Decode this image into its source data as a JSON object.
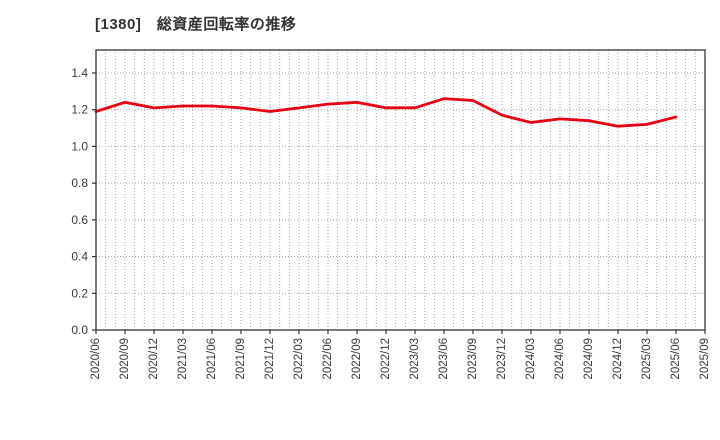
{
  "page": {
    "title": "[1380]　総資産回転率の推移"
  },
  "colors": {
    "line": "#e60012",
    "grid": "#a6a6a6",
    "axis": "#333333",
    "tick_text": "#3c3c3c",
    "background": "#ffffff"
  },
  "chart_data": {
    "type": "line",
    "title": "[1380]　総資産回転率の推移",
    "categories": [
      "2020/06",
      "2020/09",
      "2020/12",
      "2021/03",
      "2021/06",
      "2021/09",
      "2021/12",
      "2022/03",
      "2022/06",
      "2022/09",
      "2022/12",
      "2023/03",
      "2023/06",
      "2023/09",
      "2023/12",
      "2024/03",
      "2024/06",
      "2024/09",
      "2024/12",
      "2025/03",
      "2025/06",
      "2025/09"
    ],
    "values": [
      1.19,
      1.24,
      1.21,
      1.22,
      1.22,
      1.21,
      1.19,
      1.21,
      1.23,
      1.24,
      1.21,
      1.21,
      1.26,
      1.25,
      1.17,
      1.13,
      1.15,
      1.14,
      1.11,
      1.12,
      1.16,
      null
    ],
    "xlabel": "",
    "ylabel": "",
    "ylim": [
      0.0,
      1.4
    ],
    "ytick_step": 0.2,
    "ytick_labels": [
      "0.0",
      "0.2",
      "0.4",
      "0.6",
      "0.8",
      "1.0",
      "1.2",
      "1.4"
    ],
    "grid": true,
    "x_minor_divisions_per_interval": 3,
    "legend_position": "none"
  }
}
